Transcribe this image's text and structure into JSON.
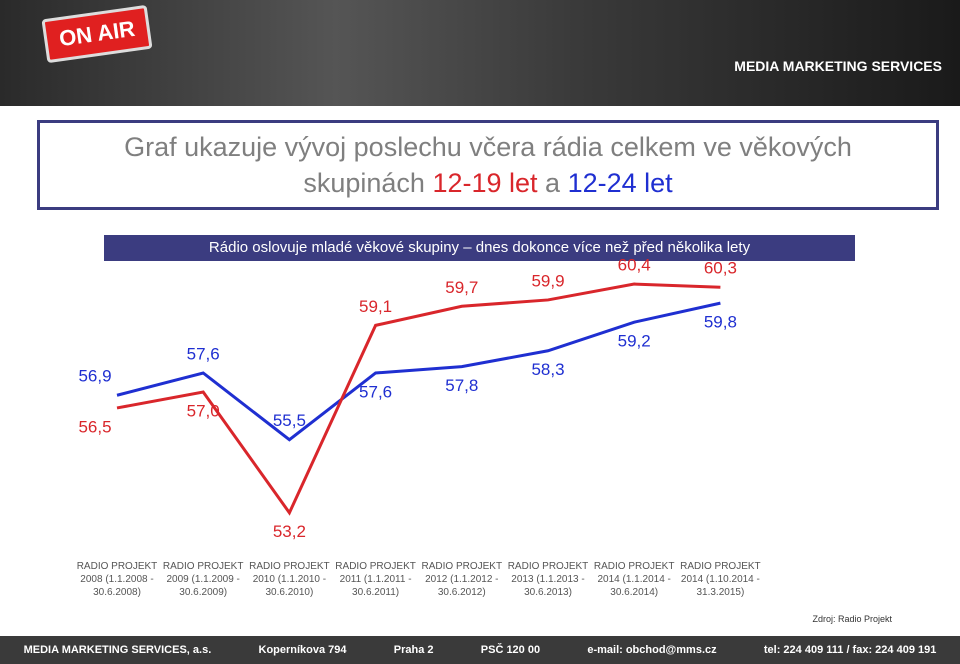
{
  "header": {
    "badge": "ON AIR",
    "logo": "MEDIA MARKETING SERVICES"
  },
  "title": {
    "parts": [
      "Graf ukazuje vývoj poslechu včera rádia celkem ve věkových skupinách ",
      "12-19 let",
      " a ",
      "12-24 let"
    ]
  },
  "chart_data": {
    "type": "line",
    "subtitle": "Rádio oslovuje mladé věkové skupiny – dnes dokonce více než před několika lety",
    "categories": [
      "RADIO PROJEKT 2008 (1.1.2008 - 30.6.2008)",
      "RADIO PROJEKT 2009 (1.1.2009 - 30.6.2009)",
      "RADIO PROJEKT 2010 (1.1.2010 - 30.6.2010)",
      "RADIO PROJEKT 2011 (1.1.2011 - 30.6.2011)",
      "RADIO PROJEKT 2012 (1.1.2012 - 30.6.2012)",
      "RADIO PROJEKT 2013 (1.1.2013 - 30.6.2013)",
      "RADIO PROJEKT 2014 (1.1.2014 - 30.6.2014)",
      "RADIO PROJEKT 2014 (1.10.2014 - 31.3.2015)"
    ],
    "series": [
      {
        "color": "#1f2fd1",
        "values": [
          56.9,
          57.6,
          55.5,
          57.6,
          57.8,
          58.3,
          59.2,
          59.8
        ],
        "value_labels": [
          "56,9",
          "57,6",
          "55,5",
          "57,6",
          "57,8",
          "58,3",
          "59,2",
          "59,8"
        ]
      },
      {
        "color": "#d9262b",
        "values": [
          56.5,
          57.0,
          53.2,
          59.1,
          59.7,
          59.9,
          60.4,
          60.3
        ],
        "value_labels": [
          "56,5",
          "57,0",
          "53,2",
          "59,1",
          "59,7",
          "59,9",
          "60,4",
          "60,3"
        ]
      }
    ],
    "ylim": [
      52.5,
      61
    ]
  },
  "source": "Zdroj: Radio Projekt",
  "footer": [
    "MEDIA MARKETING SERVICES, a.s.",
    "Koperníkova 794",
    "Praha 2",
    "PSČ 120 00",
    "e-mail: obchod@mms.cz",
    "tel: 224 409 111 / fax: 224 409 191"
  ]
}
